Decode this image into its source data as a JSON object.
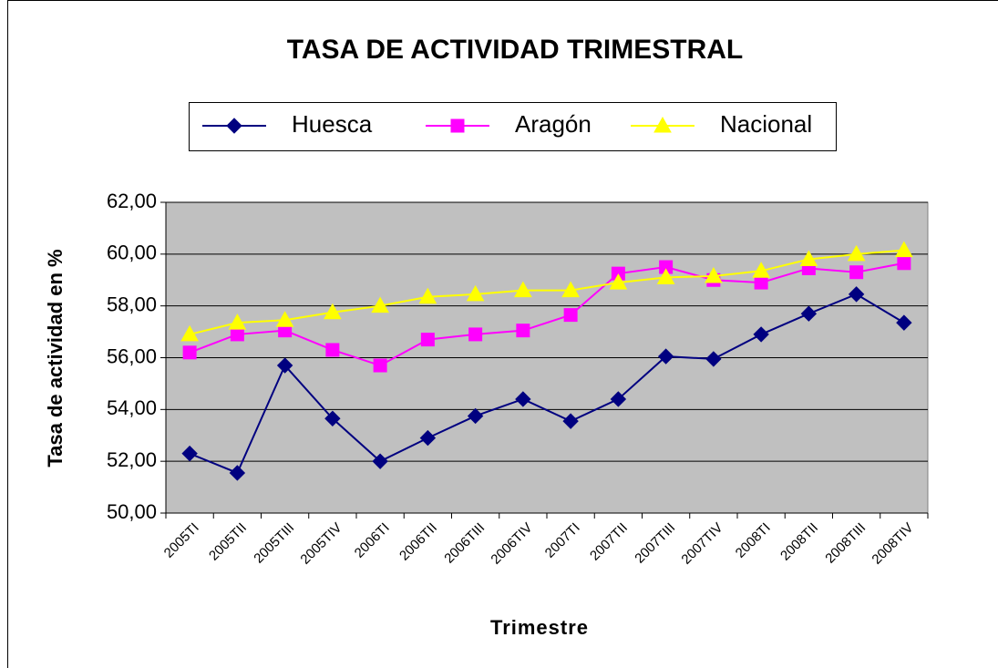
{
  "chart_data": {
    "type": "line",
    "title": "TASA DE ACTIVIDAD TRIMESTRAL",
    "x_label": "Trimestre",
    "y_label": "Tasa de actividad en %",
    "categories": [
      "2005TI",
      "2005TII",
      "2005TIII",
      "2005TIV",
      "2006TI",
      "2006TII",
      "2006TIII",
      "2006TIV",
      "2007TI",
      "2007TII",
      "2007TIII",
      "2007TIV",
      "2008TI",
      "2008TII",
      "2008TIII",
      "2008TIV"
    ],
    "series": [
      {
        "name": "Huesca",
        "color": "#000080",
        "marker": "diamond",
        "values": [
          52.3,
          51.55,
          55.7,
          53.65,
          52.0,
          52.9,
          53.75,
          54.4,
          53.55,
          54.4,
          56.05,
          55.95,
          56.9,
          57.7,
          58.45,
          57.35
        ]
      },
      {
        "name": "Aragón",
        "color": "#ff00ff",
        "marker": "square",
        "values": [
          56.2,
          56.9,
          57.05,
          56.3,
          55.7,
          56.7,
          56.9,
          57.05,
          57.65,
          59.25,
          59.5,
          59.0,
          58.9,
          59.45,
          59.3,
          59.65
        ]
      },
      {
        "name": "Nacional",
        "color": "#ffff00",
        "marker": "triangle",
        "values": [
          56.9,
          57.35,
          57.45,
          57.75,
          58.0,
          58.35,
          58.45,
          58.6,
          58.6,
          58.9,
          59.1,
          59.15,
          59.35,
          59.8,
          60.0,
          60.15
        ]
      }
    ],
    "ylim": [
      50,
      62
    ],
    "yticks": [
      {
        "value": 50,
        "label": "50,00"
      },
      {
        "value": 52,
        "label": "52,00"
      },
      {
        "value": 54,
        "label": "54,00"
      },
      {
        "value": 56,
        "label": "56,00"
      },
      {
        "value": 58,
        "label": "58,00"
      },
      {
        "value": 60,
        "label": "60,00"
      },
      {
        "value": 62,
        "label": "62,00"
      }
    ],
    "grid": true,
    "legend": "top",
    "plot_background": "#c0c0c0"
  }
}
